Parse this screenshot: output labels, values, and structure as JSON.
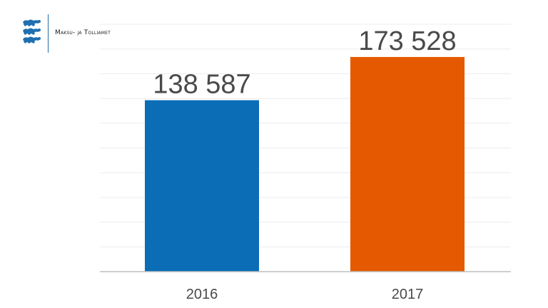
{
  "brand": {
    "name": "Maksu- ja Tolliamet",
    "emblem_icon": "three-lions-coat-of-arms-icon",
    "emblem_color": "#1f6fb0"
  },
  "chart_data": {
    "type": "bar",
    "title": "",
    "xlabel": "",
    "ylabel": "",
    "categories": [
      "2016",
      "2017"
    ],
    "values": [
      138587,
      173528
    ],
    "value_labels": [
      "138 587",
      "173 528"
    ],
    "colors": [
      "#0a6db5",
      "#e55a00"
    ],
    "ylim": [
      0,
      200000
    ],
    "grid": true,
    "y_tick_labels_shown": false
  }
}
